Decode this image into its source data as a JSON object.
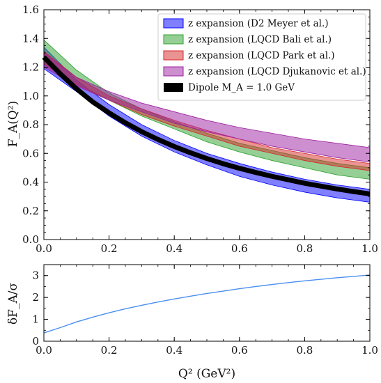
{
  "chart_data": [
    {
      "type": "area",
      "ylabel": "F_A(Q²)",
      "xlim": [
        0.0,
        1.0
      ],
      "ylim": [
        0.0,
        1.6
      ],
      "x_ticks": [
        "0.0",
        "0.2",
        "0.4",
        "0.6",
        "0.8",
        "1.0"
      ],
      "y_ticks": [
        "0.0",
        "0.2",
        "0.4",
        "0.6",
        "0.8",
        "1.0",
        "1.2",
        "1.4",
        "1.6"
      ],
      "legend_position": "top-right",
      "series": [
        {
          "name": "z expansion (D2 Meyer et al.)",
          "kind": "band",
          "color": "#0000ff",
          "x": [
            0.0,
            0.1,
            0.2,
            0.3,
            0.4,
            0.5,
            0.6,
            0.7,
            0.8,
            0.9,
            1.0
          ],
          "lower": [
            1.19,
            1.03,
            0.86,
            0.72,
            0.61,
            0.52,
            0.44,
            0.38,
            0.33,
            0.29,
            0.26
          ],
          "upper": [
            1.34,
            1.11,
            0.94,
            0.8,
            0.69,
            0.6,
            0.53,
            0.47,
            0.42,
            0.38,
            0.35
          ]
        },
        {
          "name": "z expansion (LQCD Bali et al.)",
          "kind": "band",
          "color": "#2ca02c",
          "x": [
            0.0,
            0.1,
            0.2,
            0.3,
            0.4,
            0.5,
            0.6,
            0.7,
            0.8,
            0.9,
            1.0
          ],
          "lower": [
            1.23,
            1.09,
            0.97,
            0.86,
            0.77,
            0.68,
            0.61,
            0.55,
            0.5,
            0.45,
            0.42
          ],
          "upper": [
            1.39,
            1.18,
            1.02,
            0.91,
            0.82,
            0.74,
            0.67,
            0.62,
            0.57,
            0.53,
            0.5
          ]
        },
        {
          "name": "z expansion (LQCD Park et al.)",
          "kind": "band",
          "color": "#d62728",
          "x": [
            0.0,
            0.1,
            0.2,
            0.3,
            0.4,
            0.5,
            0.6,
            0.7,
            0.8,
            0.9,
            1.0
          ],
          "lower": [
            1.22,
            1.08,
            0.97,
            0.87,
            0.79,
            0.72,
            0.65,
            0.6,
            0.55,
            0.51,
            0.48
          ],
          "upper": [
            1.31,
            1.13,
            1.0,
            0.91,
            0.83,
            0.76,
            0.7,
            0.64,
            0.6,
            0.56,
            0.53
          ]
        },
        {
          "name": "z expansion (LQCD Djukanovic et al.)",
          "kind": "band",
          "color": "#9b1fa0",
          "x": [
            0.0,
            0.1,
            0.2,
            0.3,
            0.4,
            0.5,
            0.6,
            0.7,
            0.8,
            0.9,
            1.0
          ],
          "lower": [
            1.2,
            1.07,
            0.97,
            0.89,
            0.81,
            0.75,
            0.7,
            0.65,
            0.61,
            0.57,
            0.54
          ],
          "upper": [
            1.3,
            1.13,
            1.03,
            0.95,
            0.89,
            0.83,
            0.78,
            0.74,
            0.7,
            0.67,
            0.64
          ]
        },
        {
          "name": "Dipole M_A = 1.0 GeV",
          "kind": "line",
          "color": "#000000",
          "x": [
            0.0,
            0.05,
            0.1,
            0.15,
            0.2,
            0.25,
            0.3,
            0.35,
            0.4,
            0.45,
            0.5,
            0.55,
            0.6,
            0.65,
            0.7,
            0.75,
            0.8,
            0.85,
            0.9,
            0.95,
            1.0
          ],
          "y": [
            1.27,
            1.154,
            1.05,
            0.958,
            0.882,
            0.813,
            0.751,
            0.697,
            0.648,
            0.604,
            0.564,
            0.528,
            0.496,
            0.467,
            0.44,
            0.416,
            0.392,
            0.372,
            0.352,
            0.334,
            0.318
          ]
        }
      ]
    },
    {
      "type": "line",
      "ylabel": "δF_A/σ",
      "xlabel": "Q² (GeV²)",
      "xlim": [
        0.0,
        1.0
      ],
      "ylim": [
        0,
        3.5
      ],
      "x_ticks": [
        "0.0",
        "0.2",
        "0.4",
        "0.6",
        "0.8",
        "1.0"
      ],
      "y_ticks": [
        "0",
        "1",
        "2",
        "3"
      ],
      "series": [
        {
          "color": "#4a8ff0",
          "x": [
            0.0,
            0.05,
            0.1,
            0.15,
            0.2,
            0.25,
            0.3,
            0.35,
            0.4,
            0.45,
            0.5,
            0.55,
            0.6,
            0.65,
            0.7,
            0.75,
            0.8,
            0.85,
            0.9,
            0.95,
            1.0
          ],
          "y": [
            0.38,
            0.62,
            0.88,
            1.1,
            1.3,
            1.48,
            1.64,
            1.79,
            1.93,
            2.06,
            2.18,
            2.29,
            2.4,
            2.5,
            2.59,
            2.68,
            2.76,
            2.83,
            2.9,
            2.96,
            3.03
          ]
        }
      ]
    }
  ]
}
